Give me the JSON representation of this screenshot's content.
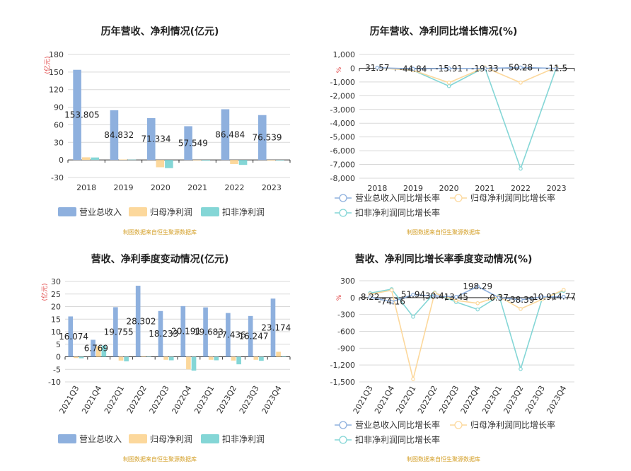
{
  "colors": {
    "revenue": "#8eb0de",
    "net_profit": "#fcd89c",
    "deducted_profit": "#84d6d6",
    "grid": "#d9d9d9",
    "axis": "#333333",
    "unit_label": "#e04040",
    "source": "#d4a02a",
    "title": "#222222"
  },
  "chart_data": [
    {
      "type": "bar",
      "title": "历年营收、净利情况(亿元)",
      "ylabel": "(亿元)",
      "categories": [
        "2018",
        "2019",
        "2020",
        "2021",
        "2022",
        "2023"
      ],
      "ylim": [
        -30,
        180
      ],
      "yticks": [
        "180",
        "150",
        "120",
        "90",
        "60",
        "30",
        "0",
        "-30"
      ],
      "series": [
        {
          "name": "营业总收入",
          "values": [
            153.805,
            84.832,
            71.334,
            57.549,
            86.484,
            76.539
          ]
        },
        {
          "name": "归母净利润",
          "values": [
            4.5,
            0.8,
            -12.5,
            -0.8,
            -7.0,
            -1.0
          ]
        },
        {
          "name": "扣非净利润",
          "values": [
            4.2,
            0.6,
            -14.0,
            -1.2,
            -8.5,
            -0.9
          ]
        }
      ],
      "data_labels": [
        "153.805",
        "84.832",
        "71.334",
        "57.549",
        "86.484",
        "76.539"
      ],
      "legend": "bottom",
      "grid": true,
      "source": "制图数据来自恒生聚源数据库"
    },
    {
      "type": "line",
      "title": "历年营收、净利同比增长情况(%)",
      "ylabel": "%",
      "categories": [
        "2018",
        "2019",
        "2020",
        "2021",
        "2022",
        "2023"
      ],
      "ylim": [
        -8000,
        1000
      ],
      "yticks": [
        "1,000",
        "0",
        "-1,000",
        "-2,000",
        "-3,000",
        "-4,000",
        "-5,000",
        "-6,000",
        "-7,000",
        "-8,000"
      ],
      "series": [
        {
          "name": "营业总收入同比增长率",
          "values": [
            31.57,
            -44.84,
            -15.91,
            -19.33,
            50.28,
            -11.5
          ]
        },
        {
          "name": "归母净利润同比增长率",
          "values": [
            20,
            -150,
            -1050,
            60,
            -1050,
            80
          ]
        },
        {
          "name": "扣非净利润同比增长率",
          "values": [
            30,
            -150,
            -1300,
            60,
            -7300,
            60
          ]
        }
      ],
      "data_labels": [
        "31.57",
        "-44.84",
        "-15.91",
        "-19.33",
        "50.28",
        "-11.5"
      ],
      "legend": "bottom",
      "grid": true,
      "source": "制图数据来自恒生聚源数据库"
    },
    {
      "type": "bar",
      "title": "营收、净利季度变动情况(亿元)",
      "ylabel": "(亿元)",
      "categories": [
        "2021Q3",
        "2021Q4",
        "2022Q1",
        "2022Q2",
        "2022Q3",
        "2022Q4",
        "2023Q1",
        "2023Q2",
        "2023Q3",
        "2023Q4"
      ],
      "ylim": [
        -10,
        30
      ],
      "yticks": [
        "30",
        "25",
        "20",
        "15",
        "10",
        "5",
        "0",
        "-5",
        "-10"
      ],
      "series": [
        {
          "name": "营业总收入",
          "values": [
            16.074,
            6.769,
            19.755,
            28.302,
            18.233,
            20.191,
            19.683,
            17.436,
            16.247,
            23.174
          ]
        },
        {
          "name": "归母净利润",
          "values": [
            -0.5,
            4.2,
            -1.5,
            0.2,
            -1.2,
            -5.0,
            -1.2,
            -1.5,
            -1.2,
            2.0
          ]
        },
        {
          "name": "扣非净利润",
          "values": [
            -0.6,
            4.5,
            -1.8,
            0.1,
            -1.4,
            -5.5,
            -1.4,
            -3.0,
            -1.6,
            0.2
          ]
        }
      ],
      "data_labels": [
        "16.074",
        "6.769",
        "19.755",
        "28.302",
        "18.233",
        "20.191",
        "19.683",
        "17.436",
        "16.247",
        "23.174"
      ],
      "legend": "bottom",
      "grid": true,
      "source": "制图数据来自恒生聚源数据库"
    },
    {
      "type": "line",
      "title": "营收、净利同比增长率季度变动情况(%)",
      "ylabel": "%",
      "categories": [
        "2021Q3",
        "2021Q4",
        "2022Q1",
        "2022Q2",
        "2022Q3",
        "2022Q4",
        "2023Q1",
        "2023Q2",
        "2023Q3",
        "2023Q4"
      ],
      "ylim": [
        -1500,
        300
      ],
      "yticks": [
        "300",
        "0",
        "-300",
        "-600",
        "-900",
        "-1,200",
        "-1,500"
      ],
      "series": [
        {
          "name": "营业总收入同比增长率",
          "values": [
            8.22,
            -74.16,
            51.94,
            30.4,
            13.45,
            198.29,
            0.37,
            -38.39,
            10.9,
            14.77
          ]
        },
        {
          "name": "归母净利润同比增长率",
          "values": [
            60,
            130,
            -1450,
            80,
            -50,
            -100,
            20,
            -200,
            -30,
            140
          ]
        },
        {
          "name": "扣非净利润同比增长率",
          "values": [
            80,
            150,
            -340,
            90,
            -80,
            -210,
            30,
            -1270,
            -20,
            120
          ]
        }
      ],
      "data_labels": [
        "8.22",
        "-74.16",
        "51.94",
        "30.4",
        "13.45",
        "198.29",
        "0.37",
        "-38.39",
        "10.9",
        "14.77"
      ],
      "legend": "bottom",
      "grid": true,
      "source": "制图数据来自恒生聚源数据库"
    }
  ]
}
